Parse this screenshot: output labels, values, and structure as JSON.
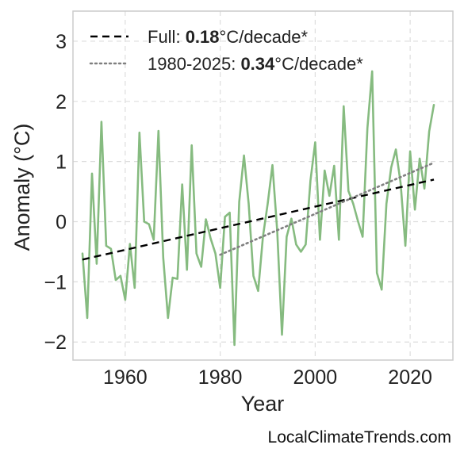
{
  "credit": "LocalClimateTrends.com",
  "chart_data": {
    "type": "line",
    "xlabel": "Year",
    "ylabel": "Anomaly (°C)",
    "xlim": [
      1949,
      2029
    ],
    "ylim": [
      -2.3,
      3.5
    ],
    "x_ticks": [
      1960,
      1980,
      2000,
      2020
    ],
    "y_ticks": [
      -2,
      -1,
      0,
      1,
      2,
      3
    ],
    "y_tick_labels": [
      "−2",
      "−1",
      "0",
      "1",
      "2",
      "3"
    ],
    "grid": true,
    "legend_position": "top-left",
    "colors": {
      "series": "#86bb80",
      "full_trend": "#000000",
      "recent_trend": "#808080"
    },
    "series": [
      {
        "x": [
          1951,
          1952,
          1953,
          1954,
          1955,
          1956,
          1957,
          1958,
          1959,
          1960,
          1961,
          1962,
          1963,
          1964,
          1965,
          1966,
          1967,
          1968,
          1969,
          1970,
          1971,
          1972,
          1973,
          1974,
          1975,
          1976,
          1977,
          1978,
          1979,
          1980,
          1981,
          1982,
          1983,
          1984,
          1985,
          1986,
          1987,
          1988,
          1989,
          1990,
          1991,
          1992,
          1993,
          1994,
          1995,
          1996,
          1997,
          1998,
          1999,
          2000,
          2001,
          2002,
          2003,
          2004,
          2005,
          2006,
          2007,
          2008,
          2009,
          2010,
          2011,
          2012,
          2013,
          2014,
          2015,
          2016,
          2017,
          2018,
          2019,
          2020,
          2021,
          2022,
          2023,
          2024,
          2025
        ],
        "values": [
          -0.53,
          -1.6,
          0.8,
          -0.7,
          1.66,
          -0.4,
          -0.45,
          -0.97,
          -0.9,
          -1.3,
          -0.37,
          -1.1,
          1.48,
          0.0,
          -0.04,
          -0.3,
          1.51,
          -0.6,
          -1.6,
          -0.93,
          -0.95,
          0.62,
          -0.8,
          1.27,
          -0.53,
          -0.75,
          0.04,
          -0.28,
          -0.53,
          -1.1,
          0.08,
          0.15,
          -2.05,
          0.33,
          1.1,
          0.3,
          -0.9,
          -1.15,
          -0.25,
          0.3,
          0.94,
          -0.15,
          -1.88,
          -0.25,
          0.05,
          -0.38,
          -0.5,
          -0.38,
          0.68,
          1.32,
          -0.3,
          0.85,
          0.43,
          0.93,
          -0.3,
          1.92,
          0.51,
          0.3,
          0.01,
          -0.25,
          1.55,
          2.5,
          -0.85,
          -1.13,
          0.3,
          0.9,
          1.2,
          0.64,
          -0.4,
          1.17,
          0.2,
          1.05,
          0.55,
          1.5,
          1.94
        ]
      }
    ],
    "trends": [
      {
        "label": "Full: ",
        "value_bold": "0.18",
        "unit": "°C/decade*",
        "style": "dashed",
        "x": [
          1951,
          2025
        ],
        "y": [
          -0.63,
          0.7
        ]
      },
      {
        "label": "1980-2025: ",
        "value_bold": "0.34",
        "unit": "°C/decade*",
        "style": "dotted",
        "x": [
          1980,
          2025
        ],
        "y": [
          -0.55,
          0.98
        ]
      }
    ]
  }
}
